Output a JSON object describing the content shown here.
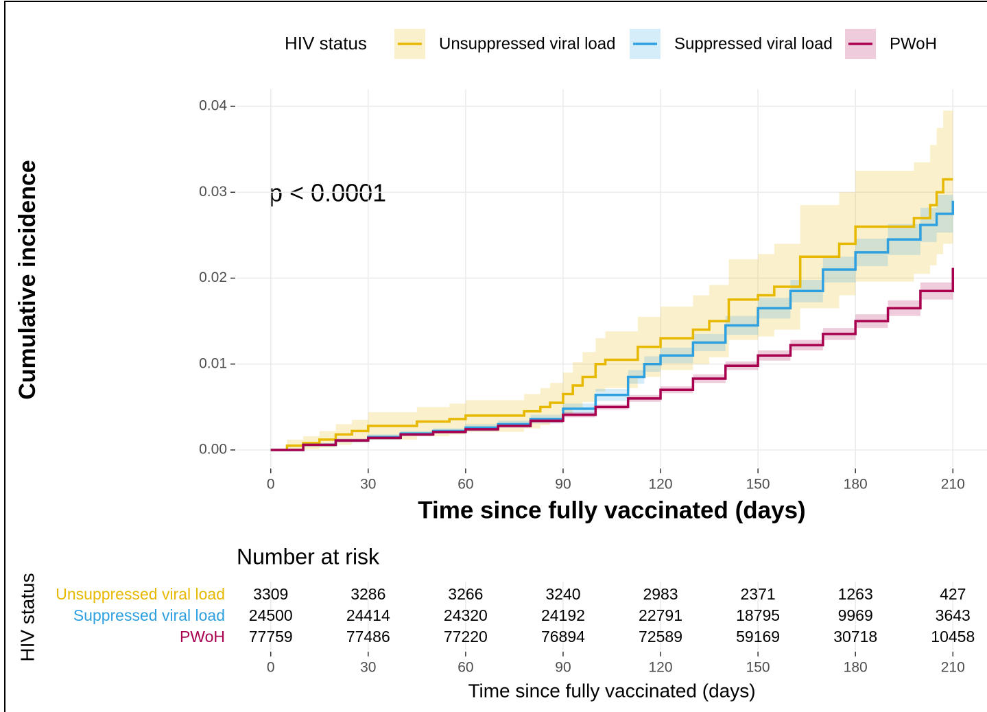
{
  "chart_data": {
    "type": "step",
    "xlabel": "Time since fully vaccinated (days)",
    "ylabel": "Cumulative incidence",
    "annotation": "p < 0.0001",
    "legend_title": "HIV status",
    "legend_position": "top",
    "grid": true,
    "xlim": [
      -10.5,
      220.5
    ],
    "ylim": [
      -0.002,
      0.042
    ],
    "xticks": [
      0,
      30,
      60,
      90,
      120,
      150,
      180,
      210
    ],
    "yticks": [
      {
        "value": 0,
        "label": "0.00"
      },
      0.01,
      0.02,
      0.03,
      0.04
    ],
    "series": [
      {
        "name": "Unsuppressed viral load",
        "color": "#e7b800",
        "x": [
          0,
          5,
          10,
          15,
          20,
          25,
          30,
          45,
          55,
          60,
          78,
          83,
          86,
          90,
          93,
          96,
          100,
          103,
          113,
          120,
          127,
          130,
          135,
          141,
          145,
          150,
          155,
          163,
          175,
          180,
          195,
          198,
          203,
          205,
          207,
          210
        ],
        "values": [
          0,
          0.0005,
          0.0008,
          0.0012,
          0.0018,
          0.0022,
          0.0028,
          0.0033,
          0.0036,
          0.004,
          0.0045,
          0.005,
          0.0055,
          0.0065,
          0.0075,
          0.0085,
          0.01,
          0.0105,
          0.012,
          0.013,
          0.013,
          0.014,
          0.015,
          0.0175,
          0.0175,
          0.018,
          0.019,
          0.0225,
          0.024,
          0.026,
          0.026,
          0.027,
          0.0285,
          0.03,
          0.0315,
          0.0315
        ],
        "lower": [
          0,
          0,
          0.0001,
          0.0003,
          0.0006,
          0.0009,
          0.0012,
          0.0016,
          0.0018,
          0.0021,
          0.0025,
          0.0029,
          0.0032,
          0.004,
          0.0048,
          0.0056,
          0.0068,
          0.0072,
          0.0085,
          0.0093,
          0.0093,
          0.01,
          0.0108,
          0.0128,
          0.0128,
          0.0132,
          0.014,
          0.0165,
          0.018,
          0.0196,
          0.0196,
          0.0205,
          0.0215,
          0.0228,
          0.024,
          0.024
        ],
        "upper": [
          0,
          0.0012,
          0.0016,
          0.0022,
          0.003,
          0.0035,
          0.0044,
          0.005,
          0.0054,
          0.0058,
          0.0065,
          0.0072,
          0.0078,
          0.009,
          0.0102,
          0.0114,
          0.013,
          0.0138,
          0.0155,
          0.0167,
          0.0167,
          0.018,
          0.0192,
          0.0222,
          0.0222,
          0.0228,
          0.024,
          0.0285,
          0.03,
          0.0325,
          0.0325,
          0.0335,
          0.0355,
          0.0375,
          0.0395,
          0.0395
        ]
      },
      {
        "name": "Suppressed viral load",
        "color": "#2e9fdf",
        "x": [
          0,
          10,
          20,
          30,
          40,
          50,
          60,
          70,
          80,
          90,
          100,
          110,
          115,
          120,
          130,
          140,
          150,
          160,
          170,
          180,
          190,
          200,
          205,
          210
        ],
        "values": [
          0,
          0.0006,
          0.0011,
          0.0015,
          0.0019,
          0.0022,
          0.0026,
          0.003,
          0.0036,
          0.0048,
          0.0064,
          0.0085,
          0.01,
          0.011,
          0.0125,
          0.0145,
          0.0165,
          0.0185,
          0.021,
          0.023,
          0.0245,
          0.0262,
          0.0275,
          0.029
        ],
        "lower": [
          0,
          0.0004,
          0.0009,
          0.0012,
          0.0016,
          0.0019,
          0.0022,
          0.0026,
          0.0031,
          0.0042,
          0.0057,
          0.0077,
          0.0091,
          0.0101,
          0.0115,
          0.0134,
          0.0153,
          0.0172,
          0.0195,
          0.0214,
          0.0227,
          0.0242,
          0.0253,
          0.0266
        ],
        "upper": [
          0,
          0.0008,
          0.0013,
          0.0018,
          0.0022,
          0.0025,
          0.003,
          0.0034,
          0.0041,
          0.0054,
          0.0071,
          0.0093,
          0.0109,
          0.0119,
          0.0135,
          0.0156,
          0.0177,
          0.0198,
          0.0225,
          0.0246,
          0.0263,
          0.0282,
          0.0297,
          0.0314
        ]
      },
      {
        "name": "PWoH",
        "color": "#a8004f",
        "x": [
          0,
          10,
          20,
          30,
          40,
          50,
          60,
          70,
          80,
          90,
          100,
          110,
          120,
          130,
          140,
          150,
          160,
          170,
          180,
          190,
          200,
          210
        ],
        "values": [
          0,
          0.0006,
          0.0011,
          0.0014,
          0.0018,
          0.0021,
          0.0024,
          0.0028,
          0.0034,
          0.0041,
          0.005,
          0.006,
          0.007,
          0.0083,
          0.0098,
          0.011,
          0.0122,
          0.0135,
          0.015,
          0.0165,
          0.0185,
          0.0212
        ],
        "lower": [
          0,
          0.0005,
          0.0009,
          0.0012,
          0.0016,
          0.0019,
          0.0022,
          0.0026,
          0.0031,
          0.0038,
          0.0047,
          0.0056,
          0.0066,
          0.0078,
          0.0093,
          0.0104,
          0.0116,
          0.0128,
          0.0142,
          0.0156,
          0.0175,
          0.02
        ],
        "upper": [
          0,
          0.0007,
          0.0013,
          0.0016,
          0.002,
          0.0023,
          0.0026,
          0.003,
          0.0037,
          0.0044,
          0.0053,
          0.0064,
          0.0074,
          0.0088,
          0.0103,
          0.0116,
          0.0128,
          0.0142,
          0.0158,
          0.0174,
          0.0195,
          0.0224
        ]
      }
    ],
    "risk_table": {
      "title": "Number at risk",
      "ylabel": "HIV status",
      "xlabel": "Time since fully vaccinated (days)",
      "xticks": [
        0,
        30,
        60,
        90,
        120,
        150,
        180,
        210
      ],
      "rows": [
        {
          "name": "Unsuppressed viral load",
          "color": "#e7b800",
          "values": [
            3309,
            3286,
            3266,
            3240,
            2983,
            2371,
            1263,
            427
          ]
        },
        {
          "name": "Suppressed viral load",
          "color": "#2e9fdf",
          "values": [
            24500,
            24414,
            24320,
            24192,
            22791,
            18795,
            9969,
            3643
          ]
        },
        {
          "name": "PWoH",
          "color": "#a8004f",
          "values": [
            77759,
            77486,
            77220,
            76894,
            72589,
            59169,
            30718,
            10458
          ]
        }
      ]
    }
  }
}
